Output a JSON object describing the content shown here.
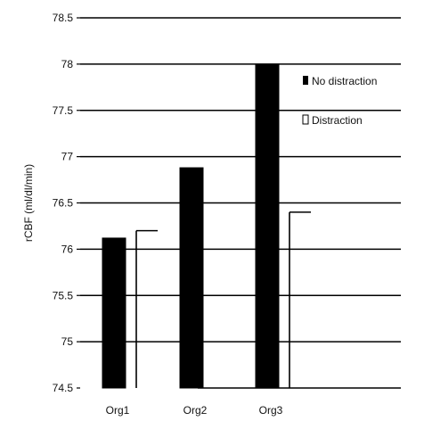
{
  "chart_data": {
    "type": "bar",
    "title": "",
    "xlabel": "",
    "ylabel": "rCBF (ml/dl/min)",
    "categories": [
      "Org1",
      "Org2",
      "Org3"
    ],
    "series": [
      {
        "name": "No distraction",
        "values": [
          76.12,
          76.88,
          78.0
        ],
        "color": "#000000"
      },
      {
        "name": "Distraction",
        "values": [
          76.2,
          74.5,
          76.4
        ],
        "color": "#000000"
      }
    ],
    "ylim": [
      74.5,
      78.5
    ],
    "yticks": [
      {
        "value": 74.5,
        "label": "74.5"
      },
      {
        "value": 75,
        "label": "75"
      },
      {
        "value": 75.5,
        "label": "75.5"
      },
      {
        "value": 76,
        "label": "76"
      },
      {
        "value": 76.5,
        "label": "76.5"
      },
      {
        "value": 77,
        "label": "77"
      },
      {
        "value": 77.5,
        "label": "77.5"
      },
      {
        "value": 78,
        "label": "78"
      },
      {
        "value": 78.5,
        "label": "78.5"
      }
    ],
    "grid": true,
    "legend": "right"
  }
}
